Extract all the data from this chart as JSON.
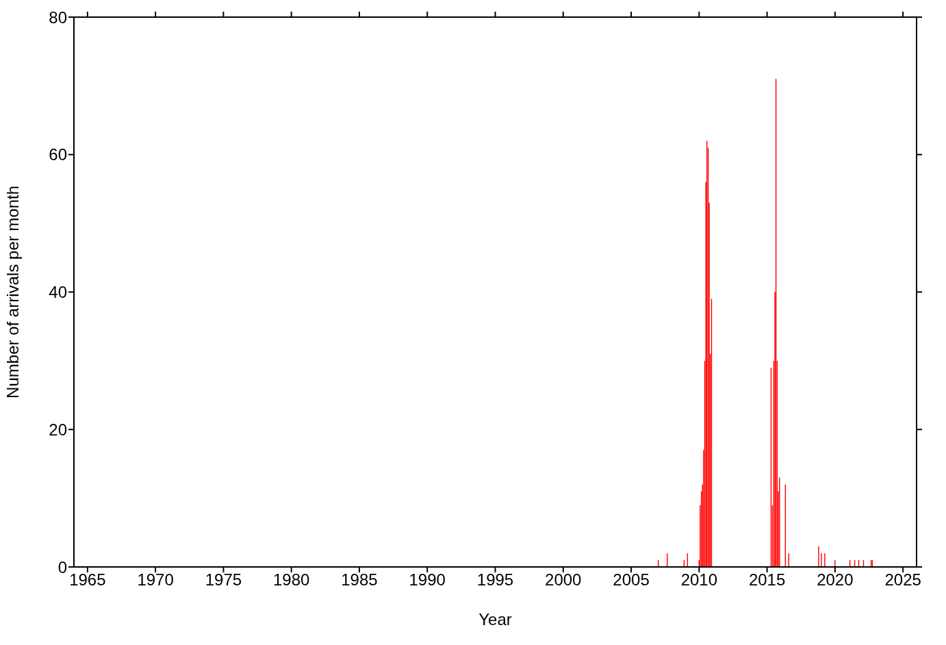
{
  "chart_data": {
    "type": "bar",
    "xlabel": "Year",
    "ylabel": "Number of arrivals per month",
    "x": [
      2007.0,
      2007.66,
      2008.9,
      2009.15,
      2010.0,
      2010.08,
      2010.17,
      2010.25,
      2010.33,
      2010.42,
      2010.5,
      2010.58,
      2010.67,
      2010.75,
      2010.83,
      2010.92,
      2015.3,
      2015.4,
      2015.5,
      2015.58,
      2015.66,
      2015.75,
      2015.83,
      2015.92,
      2016.35,
      2016.6,
      2018.8,
      2019.0,
      2019.25,
      2020.0,
      2021.1,
      2021.45,
      2021.75,
      2022.1,
      2022.66,
      2022.75
    ],
    "values": [
      1,
      2,
      1,
      2,
      1,
      9,
      11,
      12,
      17,
      30,
      56,
      62,
      61,
      53,
      31,
      39,
      29,
      9,
      30,
      40,
      71,
      30,
      11,
      13,
      12,
      2,
      3,
      2,
      2,
      1,
      1,
      1,
      1,
      1,
      1,
      1
    ],
    "color": "#ff0000",
    "xlim": [
      1964,
      2026
    ],
    "xticks": [
      1965,
      1970,
      1975,
      1980,
      1985,
      1990,
      1995,
      2000,
      2005,
      2010,
      2015,
      2020,
      2025
    ],
    "ylim": [
      0,
      80
    ],
    "yticks": [
      0,
      20,
      40,
      60,
      80
    ],
    "grid": false
  }
}
